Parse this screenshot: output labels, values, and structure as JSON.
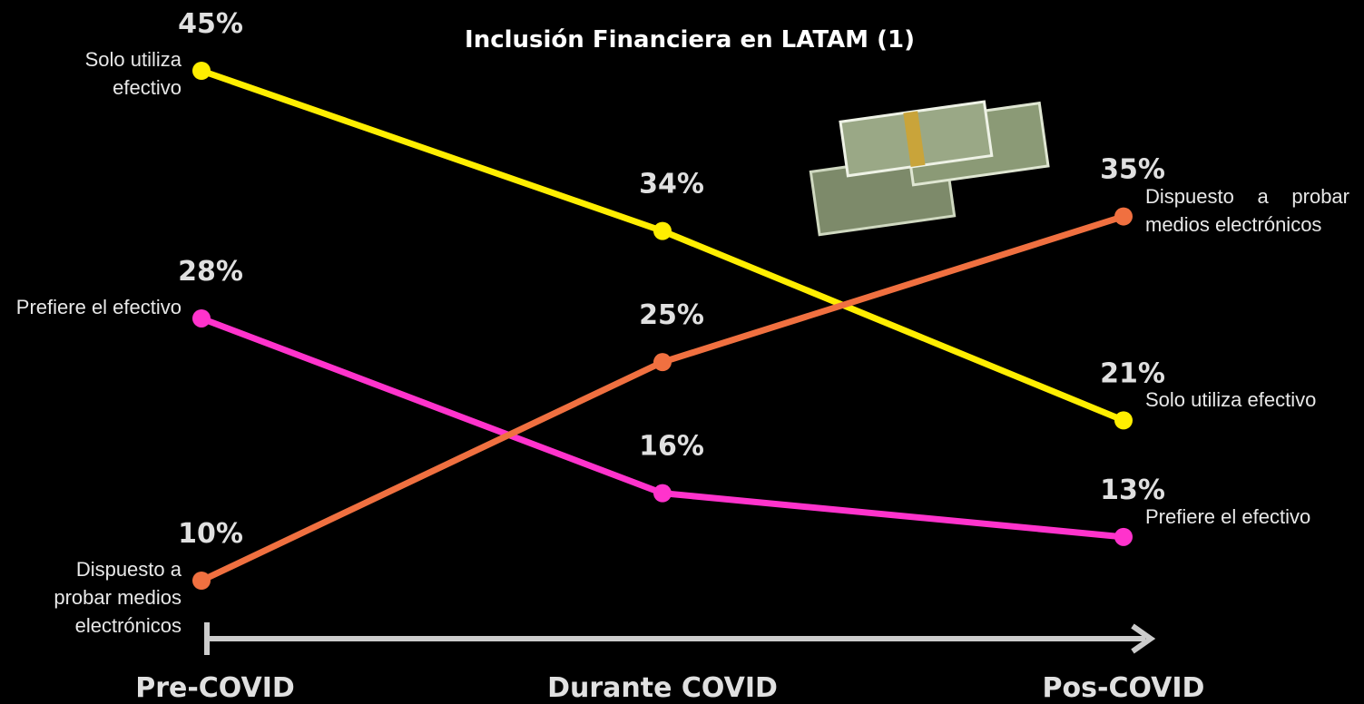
{
  "chart_data": {
    "type": "slope",
    "title": "Inclusión Financiera en LATAM (1)",
    "categories": [
      "Pre-COVID",
      "Durante COVID",
      "Pos-COVID"
    ],
    "series": [
      {
        "name": "Solo utiliza efectivo",
        "color": "#ffee00",
        "values": [
          45,
          34,
          21
        ],
        "value_labels": [
          "45%",
          "34%",
          "21%"
        ]
      },
      {
        "name": "Prefiere el efectivo",
        "color": "#ff33cc",
        "values": [
          28,
          16,
          13
        ],
        "value_labels": [
          "28%",
          "16%",
          "13%"
        ]
      },
      {
        "name": "Dispuesto a probar medios electrónicos",
        "color": "#f07040",
        "values": [
          10,
          25,
          35
        ],
        "value_labels": [
          "10%",
          "25%",
          "35%"
        ]
      }
    ]
  }
}
